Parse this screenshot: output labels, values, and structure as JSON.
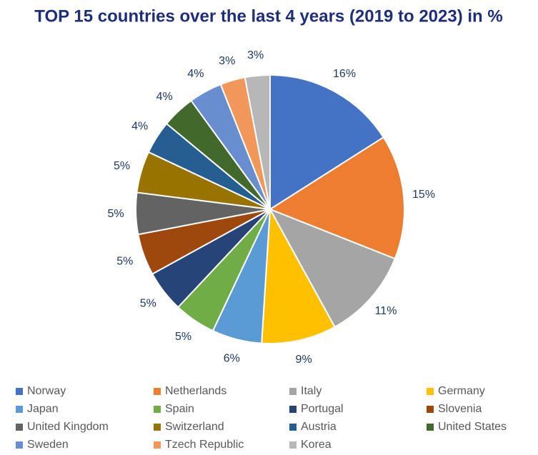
{
  "chart_data": {
    "type": "pie",
    "title": "TOP 15 countries over the last 4 years (2019 to 2023) in %",
    "categories": [
      "Norway",
      "Netherlands",
      "Italy",
      "Germany",
      "Japan",
      "Spain",
      "Portugal",
      "Slovenia",
      "United Kingdom",
      "Switzerland",
      "Austria",
      "United States",
      "Sweden",
      "Tzech Republic",
      "Korea"
    ],
    "values": [
      16,
      15,
      11,
      9,
      6,
      5,
      5,
      5,
      5,
      5,
      4,
      4,
      4,
      3,
      3
    ],
    "value_labels": [
      "16%",
      "15%",
      "11%",
      "9%",
      "6%",
      "5%",
      "5%",
      "5%",
      "5%",
      "5%",
      "4%",
      "4%",
      "4%",
      "3%",
      "3%"
    ],
    "colors": [
      "#4472c4",
      "#ed7d31",
      "#a5a5a5",
      "#ffc000",
      "#5b9bd5",
      "#70ad47",
      "#264478",
      "#9e480e",
      "#636363",
      "#997300",
      "#255e91",
      "#43682b",
      "#698ed0",
      "#f1975a",
      "#b7b7b7"
    ],
    "legend": "bottom"
  }
}
